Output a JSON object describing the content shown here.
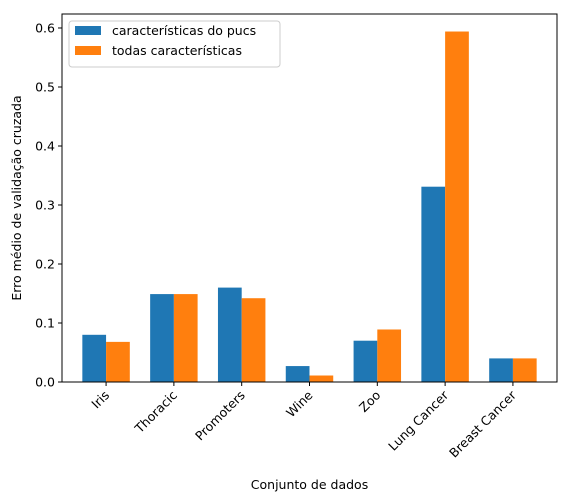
{
  "chart_data": {
    "type": "bar",
    "xlabel": "Conjunto de dados",
    "ylabel": "Erro médio de validação cruzada",
    "categories": [
      "Iris",
      "Thoracic",
      "Promoters",
      "Wine",
      "Zoo",
      "Lung Cancer",
      "Breast Cancer"
    ],
    "series": [
      {
        "name": "características do pucs",
        "color": "#1f77b4",
        "values": [
          0.08,
          0.149,
          0.16,
          0.027,
          0.07,
          0.331,
          0.04
        ]
      },
      {
        "name": "todas características",
        "color": "#ff7f0e",
        "values": [
          0.068,
          0.149,
          0.142,
          0.011,
          0.089,
          0.594,
          0.04
        ]
      }
    ],
    "ylim": [
      0,
      0.6237
    ],
    "yticks": [
      "0.0",
      "0.1",
      "0.2",
      "0.3",
      "0.4",
      "0.5",
      "0.6"
    ],
    "legend_position": "top-left",
    "grid": false
  }
}
